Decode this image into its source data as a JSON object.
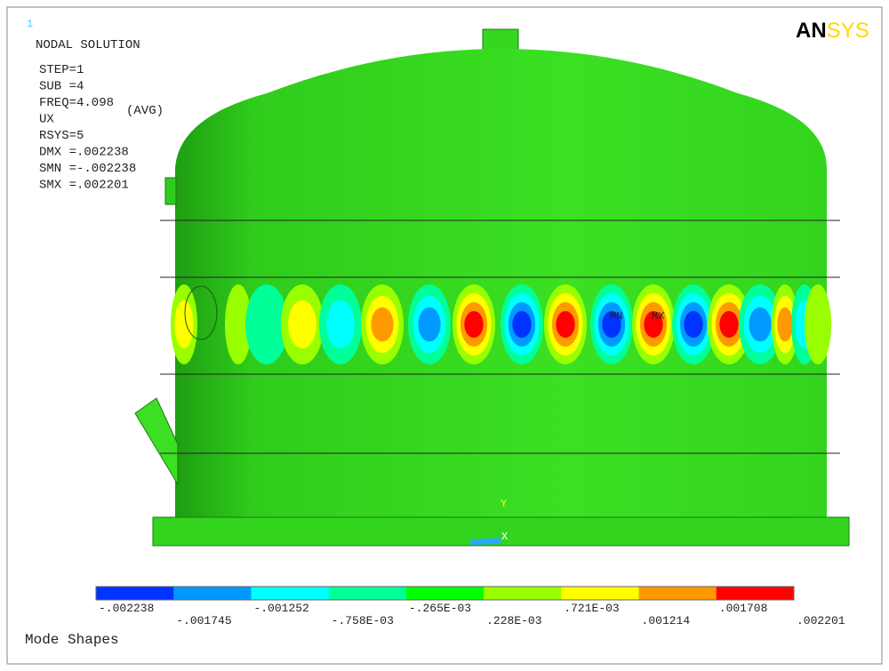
{
  "window_label": "1",
  "info": [
    "NODAL SOLUTION",
    "STEP=1",
    "SUB =4",
    "FREQ=4.098",
    "UX",
    "(AVG)",
    "RSYS=5",
    "DMX =.002238",
    "SMN =-.002238",
    "SMX =.002201"
  ],
  "logo": {
    "left": "AN",
    "right": "SYS"
  },
  "markers": {
    "min": "MN",
    "max": "MX",
    "y_axis": "Y",
    "x_axis": "X"
  },
  "legend": {
    "colors": [
      "#0033ff",
      "#0099ff",
      "#00ffff",
      "#00ff99",
      "#00ff00",
      "#99ff00",
      "#ffff00",
      "#ff9900",
      "#ff0000"
    ],
    "labels": [
      "-.002238",
      "-.001745",
      "-.001252",
      "-.758E-03",
      "-.265E-03",
      ".228E-03",
      ".721E-03",
      ".001214",
      ".001708",
      ".002201"
    ]
  },
  "footer": "Mode Shapes"
}
